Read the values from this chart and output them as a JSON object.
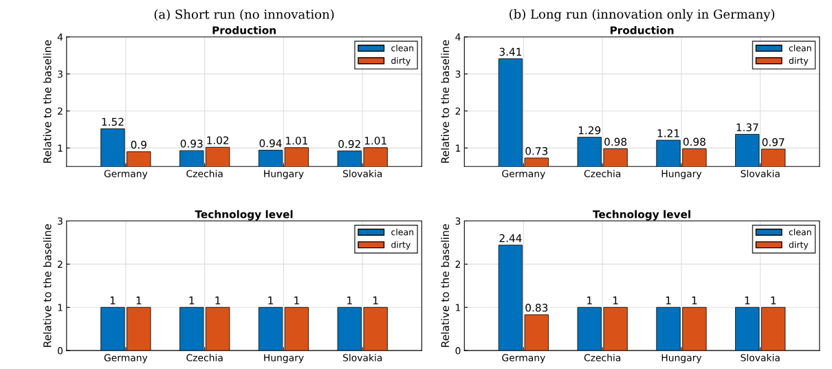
{
  "chart_data": [
    {
      "type": "bar",
      "subtitle": "(a) Short run (no innovation)",
      "title": "Production",
      "ylabel": "Relative to the baseline",
      "categories": [
        "Germany",
        "Czechia",
        "Hungary",
        "Slovakia"
      ],
      "series": [
        {
          "name": "clean",
          "color": "#0072bd",
          "values": [
            1.52,
            0.93,
            0.94,
            0.92
          ]
        },
        {
          "name": "dirty",
          "color": "#d95319",
          "values": [
            0.9,
            1.02,
            1.01,
            1.01
          ]
        }
      ],
      "ylim": [
        0.5,
        4
      ],
      "yticks": [
        1,
        2,
        3,
        4
      ],
      "grid": true,
      "legend": "top right",
      "data_labels": true
    },
    {
      "type": "bar",
      "subtitle": "(b) Long run (innovation only in Germany)",
      "title": "Production",
      "ylabel": "Relative to the baseline",
      "categories": [
        "Germany",
        "Czechia",
        "Hungary",
        "Slovakia"
      ],
      "series": [
        {
          "name": "clean",
          "color": "#0072bd",
          "values": [
            3.41,
            1.29,
            1.21,
            1.37
          ]
        },
        {
          "name": "dirty",
          "color": "#d95319",
          "values": [
            0.73,
            0.98,
            0.98,
            0.97
          ]
        }
      ],
      "ylim": [
        0.5,
        4
      ],
      "yticks": [
        1,
        2,
        3,
        4
      ],
      "grid": true,
      "legend": "top right",
      "data_labels": true
    },
    {
      "type": "bar",
      "title": "Technology level",
      "ylabel": "Relative to the baseline",
      "categories": [
        "Germany",
        "Czechia",
        "Hungary",
        "Slovakia"
      ],
      "series": [
        {
          "name": "clean",
          "color": "#0072bd",
          "values": [
            1,
            1,
            1,
            1
          ]
        },
        {
          "name": "dirty",
          "color": "#d95319",
          "values": [
            1,
            1,
            1,
            1
          ]
        }
      ],
      "ylim": [
        0,
        3
      ],
      "yticks": [
        0,
        1,
        2,
        3
      ],
      "grid": true,
      "legend": "top right",
      "data_labels": true
    },
    {
      "type": "bar",
      "title": "Technology level",
      "ylabel": "Relative to the baseline",
      "categories": [
        "Germany",
        "Czechia",
        "Hungary",
        "Slovakia"
      ],
      "series": [
        {
          "name": "clean",
          "color": "#0072bd",
          "values": [
            2.44,
            1,
            1,
            1
          ]
        },
        {
          "name": "dirty",
          "color": "#d95319",
          "values": [
            0.83,
            1,
            1,
            1
          ]
        }
      ],
      "ylim": [
        0,
        3
      ],
      "yticks": [
        0,
        1,
        2,
        3
      ],
      "grid": true,
      "legend": "top right",
      "data_labels": true
    }
  ]
}
